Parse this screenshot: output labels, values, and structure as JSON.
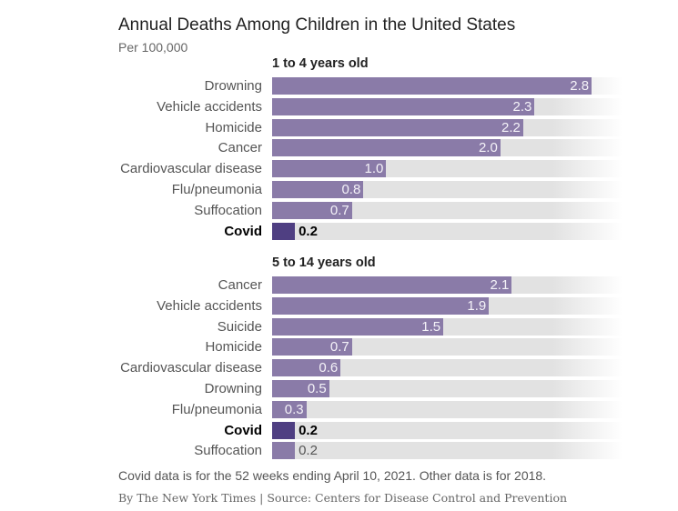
{
  "chart_data": {
    "type": "bar",
    "title": "Annual Deaths Among Children in the United States",
    "subtitle": "Per 100,000",
    "unit": "deaths per 100,000",
    "colors": {
      "bar": "#8a7ba8",
      "highlight": "#4f3f82",
      "track": "#e2e2e2"
    },
    "groups": [
      {
        "title": "1 to 4 years old",
        "categories": [
          "Drowning",
          "Vehicle accidents",
          "Homicide",
          "Cancer",
          "Cardiovascular disease",
          "Flu/pneumonia",
          "Suffocation",
          "Covid"
        ],
        "values": [
          2.8,
          2.3,
          2.2,
          2.0,
          1.0,
          0.8,
          0.7,
          0.2
        ],
        "labels": [
          "2.8",
          "2.3",
          "2.2",
          "2.0",
          "1.0",
          "0.8",
          "0.7",
          "0.2"
        ],
        "highlight": "Covid"
      },
      {
        "title": "5 to 14 years old",
        "categories": [
          "Cancer",
          "Vehicle accidents",
          "Suicide",
          "Homicide",
          "Cardiovascular disease",
          "Drowning",
          "Flu/pneumonia",
          "Covid",
          "Suffocation"
        ],
        "values": [
          2.1,
          1.9,
          1.5,
          0.7,
          0.6,
          0.5,
          0.3,
          0.2,
          0.2
        ],
        "labels": [
          "2.1",
          "1.9",
          "1.5",
          "0.7",
          "0.6",
          "0.5",
          "0.3",
          "0.2",
          "0.2"
        ],
        "highlight": "Covid"
      }
    ],
    "xlim": [
      0,
      3.05
    ],
    "note": "Covid data is for the 52 weeks ending April 10, 2021. Other data is for 2018.",
    "credit": "By The New York Times | Source: Centers for Disease Control and Prevention"
  }
}
